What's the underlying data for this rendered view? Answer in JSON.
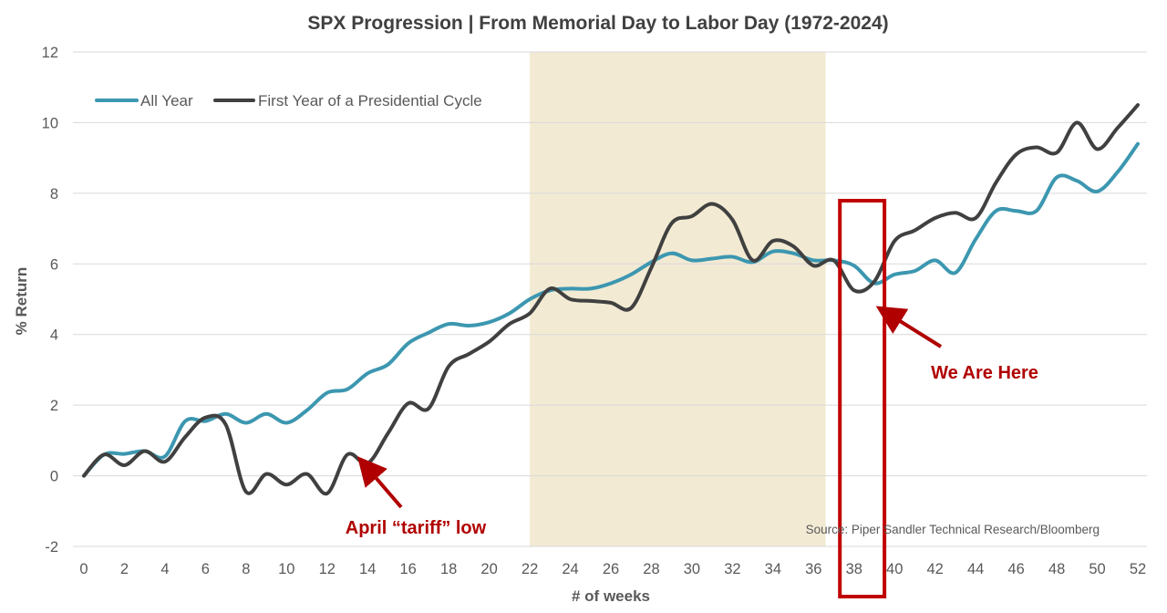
{
  "chart_data": {
    "type": "line",
    "title": "SPX Progression | From Memorial Day to Labor Day (1972-2024)",
    "xlabel": "# of weeks",
    "ylabel": "% Return",
    "xlim": [
      0,
      52
    ],
    "ylim": [
      -2,
      12
    ],
    "xticks": [
      0,
      2,
      4,
      6,
      8,
      10,
      12,
      14,
      16,
      18,
      20,
      22,
      24,
      26,
      28,
      30,
      32,
      34,
      36,
      38,
      40,
      42,
      44,
      46,
      48,
      50,
      52
    ],
    "yticks": [
      -2,
      0,
      2,
      4,
      6,
      8,
      10,
      12
    ],
    "grid": "horizontal",
    "legend_position": "top-left",
    "shaded_region": {
      "x_start": 22,
      "x_end": 36.6,
      "color": "#f2ead3"
    },
    "series": [
      {
        "name": "All Year",
        "color": "#3c97b0",
        "x": [
          0,
          1,
          2,
          3,
          4,
          5,
          6,
          7,
          8,
          9,
          10,
          11,
          12,
          13,
          14,
          15,
          16,
          17,
          18,
          19,
          20,
          21,
          22,
          23,
          24,
          25,
          26,
          27,
          28,
          29,
          30,
          31,
          32,
          33,
          34,
          35,
          36,
          37,
          38,
          39,
          40,
          41,
          42,
          43,
          44,
          45,
          46,
          47,
          48,
          49,
          50,
          51,
          52
        ],
        "values": [
          0,
          0.6,
          0.62,
          0.7,
          0.55,
          1.55,
          1.55,
          1.75,
          1.5,
          1.75,
          1.5,
          1.85,
          2.35,
          2.45,
          2.9,
          3.15,
          3.75,
          4.05,
          4.3,
          4.25,
          4.35,
          4.6,
          5.0,
          5.25,
          5.3,
          5.3,
          5.45,
          5.7,
          6.05,
          6.3,
          6.1,
          6.15,
          6.2,
          6.05,
          6.35,
          6.3,
          6.1,
          6.1,
          5.95,
          5.45,
          5.7,
          5.8,
          6.1,
          5.75,
          6.7,
          7.5,
          7.5,
          7.5,
          8.45,
          8.35,
          8.05,
          8.6,
          9.4
        ]
      },
      {
        "name": "First Year of a Presidential Cycle",
        "color": "#404040",
        "x": [
          0,
          1,
          2,
          3,
          4,
          5,
          6,
          7,
          8,
          9,
          10,
          11,
          12,
          13,
          14,
          15,
          16,
          17,
          18,
          19,
          20,
          21,
          22,
          23,
          24,
          25,
          26,
          27,
          28,
          29,
          30,
          31,
          32,
          33,
          34,
          35,
          36,
          37,
          38,
          39,
          40,
          41,
          42,
          43,
          44,
          45,
          46,
          47,
          48,
          49,
          50,
          51,
          52
        ],
        "values": [
          0,
          0.6,
          0.3,
          0.7,
          0.4,
          1.1,
          1.65,
          1.45,
          -0.45,
          0.05,
          -0.25,
          0.05,
          -0.5,
          0.6,
          0.35,
          1.2,
          2.05,
          1.9,
          3.1,
          3.45,
          3.8,
          4.3,
          4.6,
          5.3,
          5.0,
          4.95,
          4.9,
          4.75,
          5.9,
          7.15,
          7.35,
          7.7,
          7.25,
          6.1,
          6.65,
          6.5,
          5.95,
          6.1,
          5.25,
          5.5,
          6.65,
          6.95,
          7.3,
          7.45,
          7.3,
          8.3,
          9.1,
          9.3,
          9.15,
          10.0,
          9.25,
          9.85,
          10.5
        ]
      }
    ],
    "annotations": [
      {
        "text": "April “tariff” low",
        "arrow_target": {
          "x": 13.5,
          "y": 0.5
        },
        "color": "#b00000"
      },
      {
        "text": "We Are Here",
        "arrow_target": {
          "x": 39.2,
          "y": 4.75
        },
        "color": "#b00000"
      }
    ],
    "highlight_box": {
      "x_start": 37.3,
      "x_end": 39.5,
      "color": "#c00000"
    },
    "source": "Source: Piper Sandler Technical Research/Bloomberg"
  }
}
